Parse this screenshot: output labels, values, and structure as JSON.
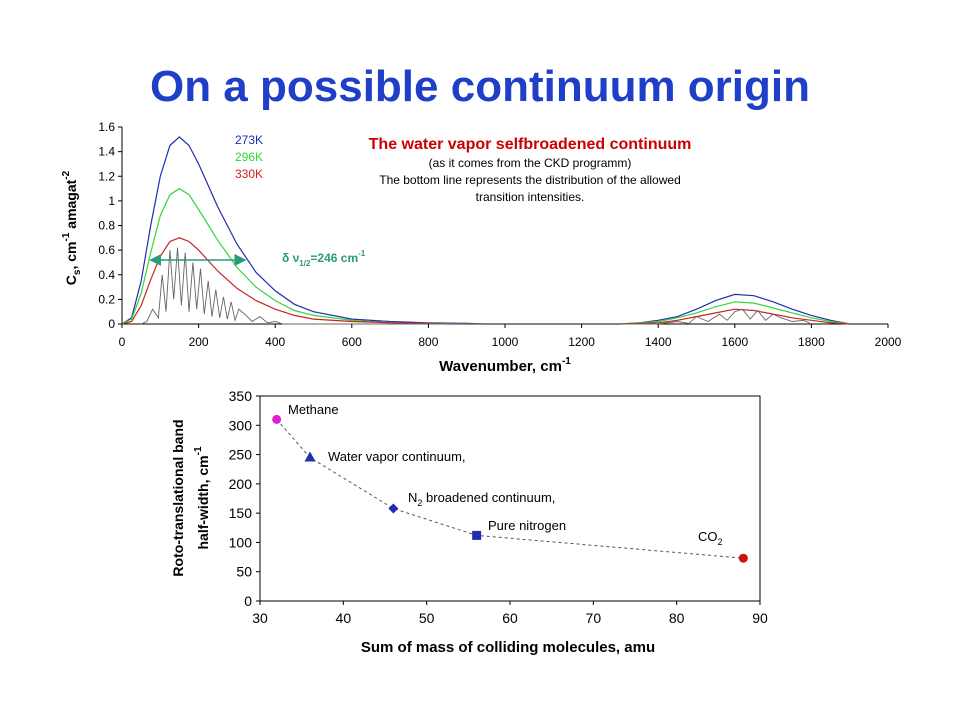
{
  "slide": {
    "title": "On a possible continuum origin"
  },
  "colors": {
    "title": "#1f3fc8",
    "t273": "#1f2fb0",
    "t296": "#33d633",
    "t330": "#cc2222",
    "lines": "#666666",
    "annotation_title": "#cc0000",
    "arrow": "#2a9a7a"
  },
  "chart_data": [
    {
      "type": "line",
      "title": "The water vapor selfbroadened  continuum",
      "subtitle_lines": [
        "(as it comes from the CKD programm)",
        "The bottom line represents the distribution of the allowed",
        "transition intensities."
      ],
      "xlabel": "Wavenumber, cm",
      "xlabel_sup": "-1",
      "ylabel_parts": {
        "main": "C",
        "sub": "s",
        "rest1": ", cm",
        "sup1": "-1",
        "rest2": " amagat",
        "sup2": "-2"
      },
      "xlim": [
        0,
        2000
      ],
      "ylim": [
        0,
        1.6
      ],
      "xticks": [
        0,
        200,
        400,
        600,
        800,
        1000,
        1200,
        1400,
        1600,
        1800,
        2000
      ],
      "yticks": [
        0,
        0.2,
        0.4,
        0.6,
        0.8,
        1,
        1.2,
        1.4,
        1.6
      ],
      "legend_position": "top-left",
      "annotation": {
        "prefix": "δ ν",
        "sub": "1/2",
        "value": "=246 cm",
        "sup": "-1",
        "arrow_from": 75,
        "arrow_to": 321
      },
      "series": [
        {
          "name": "273K",
          "color": "#1f2fb0",
          "x": [
            0,
            25,
            50,
            75,
            100,
            125,
            150,
            175,
            200,
            250,
            300,
            350,
            400,
            450,
            500,
            600,
            700,
            800,
            900,
            950,
            1300,
            1350,
            1400,
            1450,
            1500,
            1550,
            1600,
            1650,
            1700,
            1750,
            1800,
            1850,
            1900
          ],
          "y": [
            0,
            0.05,
            0.35,
            0.8,
            1.2,
            1.45,
            1.52,
            1.45,
            1.3,
            0.95,
            0.65,
            0.42,
            0.27,
            0.16,
            0.1,
            0.04,
            0.02,
            0.01,
            0.005,
            0,
            0,
            0.01,
            0.03,
            0.06,
            0.12,
            0.19,
            0.24,
            0.23,
            0.18,
            0.12,
            0.07,
            0.03,
            0
          ]
        },
        {
          "name": "296K",
          "color": "#33d633",
          "x": [
            0,
            25,
            50,
            75,
            100,
            125,
            150,
            175,
            200,
            250,
            300,
            350,
            400,
            450,
            500,
            600,
            700,
            800,
            900,
            1300,
            1350,
            1400,
            1450,
            1500,
            1550,
            1600,
            1650,
            1700,
            1750,
            1800,
            1850,
            1900
          ],
          "y": [
            0,
            0.04,
            0.25,
            0.58,
            0.88,
            1.05,
            1.1,
            1.05,
            0.93,
            0.68,
            0.46,
            0.3,
            0.19,
            0.11,
            0.07,
            0.03,
            0.01,
            0.005,
            0,
            0,
            0.01,
            0.02,
            0.05,
            0.09,
            0.14,
            0.18,
            0.17,
            0.13,
            0.09,
            0.05,
            0.02,
            0
          ]
        },
        {
          "name": "330K",
          "color": "#cc2222",
          "x": [
            0,
            25,
            50,
            75,
            100,
            125,
            150,
            175,
            200,
            250,
            300,
            350,
            400,
            450,
            500,
            600,
            700,
            800,
            850,
            1300,
            1350,
            1400,
            1450,
            1500,
            1550,
            1600,
            1650,
            1700,
            1750,
            1800,
            1850,
            1900
          ],
          "y": [
            0,
            0.02,
            0.15,
            0.36,
            0.55,
            0.67,
            0.7,
            0.67,
            0.6,
            0.43,
            0.29,
            0.19,
            0.12,
            0.07,
            0.04,
            0.02,
            0.01,
            0.005,
            0,
            0,
            0.005,
            0.01,
            0.03,
            0.06,
            0.09,
            0.12,
            0.11,
            0.08,
            0.05,
            0.03,
            0.01,
            0
          ]
        },
        {
          "name": "",
          "color": "#666666",
          "x": [
            50,
            65,
            80,
            95,
            105,
            115,
            125,
            135,
            145,
            155,
            165,
            175,
            185,
            195,
            205,
            215,
            225,
            235,
            245,
            255,
            265,
            275,
            285,
            295,
            305,
            320,
            340,
            360,
            380,
            400,
            420,
            1400,
            1450,
            1480,
            1500,
            1530,
            1560,
            1580,
            1600,
            1620,
            1640,
            1660,
            1680,
            1700,
            1720,
            1750,
            1780,
            1800
          ],
          "y": [
            0,
            0.02,
            0.12,
            0.05,
            0.4,
            0.1,
            0.6,
            0.2,
            0.62,
            0.15,
            0.58,
            0.1,
            0.5,
            0.12,
            0.45,
            0.08,
            0.35,
            0.06,
            0.28,
            0.05,
            0.22,
            0.04,
            0.18,
            0.03,
            0.12,
            0.08,
            0.02,
            0.06,
            0.01,
            0.02,
            0,
            0,
            0.02,
            0.005,
            0.06,
            0.02,
            0.08,
            0.03,
            0.1,
            0.12,
            0.04,
            0.11,
            0.03,
            0.08,
            0.05,
            0.02,
            0.03,
            0
          ]
        }
      ]
    },
    {
      "type": "scatter",
      "xlabel": "Sum of mass of colliding molecules, amu",
      "ylabel_line1": "Roto-translational band",
      "ylabel_line2": "half-width, cm",
      "ylabel_sup": "-1",
      "xlim": [
        30,
        90
      ],
      "ylim": [
        0,
        350
      ],
      "xticks": [
        30,
        40,
        50,
        60,
        70,
        80,
        90
      ],
      "yticks": [
        0,
        50,
        100,
        150,
        200,
        250,
        300,
        350
      ],
      "series": [
        {
          "name": "Methane",
          "x": [
            32
          ],
          "y": [
            310
          ],
          "marker": "circle",
          "color": "#e020d0"
        },
        {
          "name": "Water vapor continuum,",
          "x": [
            36
          ],
          "y": [
            245
          ],
          "marker": "triangle",
          "color": "#1f2fb0"
        },
        {
          "name_parts": [
            "N",
            "2",
            " broadened continuum,"
          ],
          "x": [
            46
          ],
          "y": [
            158
          ],
          "marker": "diamond",
          "color": "#1f2fb0"
        },
        {
          "name": "Pure nitrogen",
          "x": [
            56
          ],
          "y": [
            112
          ],
          "marker": "square",
          "color": "#1f2fb0"
        },
        {
          "name_parts": [
            "CO",
            "2"
          ],
          "x": [
            88
          ],
          "y": [
            73
          ],
          "marker": "circle",
          "color": "#cc1111"
        }
      ]
    }
  ]
}
